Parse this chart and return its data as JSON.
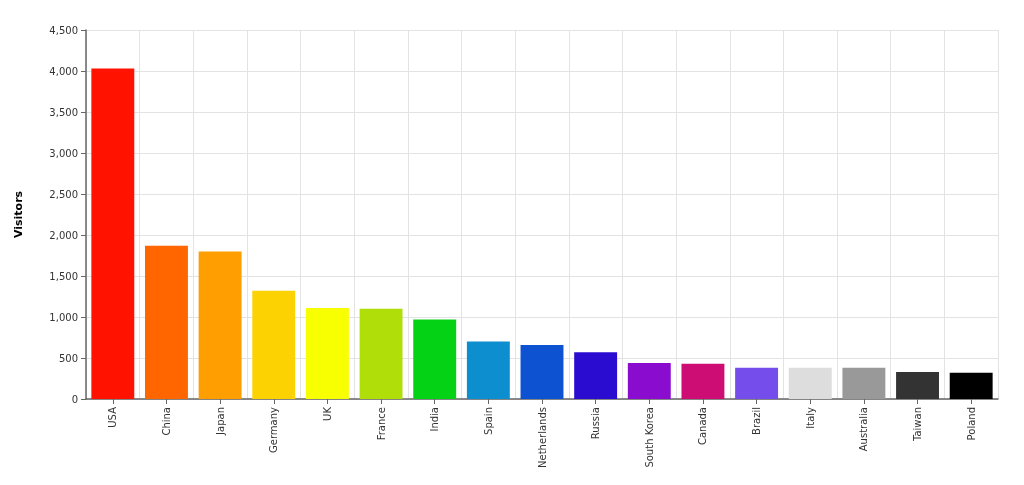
{
  "chart_data": {
    "type": "bar",
    "ylabel": "Visitors",
    "categories": [
      "USA",
      "China",
      "Japan",
      "Germany",
      "UK",
      "France",
      "India",
      "Spain",
      "Netherlands",
      "Russia",
      "South Korea",
      "Canada",
      "Brazil",
      "Italy",
      "Australia",
      "Taiwan",
      "Poland"
    ],
    "values": [
      4030,
      1870,
      1800,
      1320,
      1110,
      1100,
      970,
      700,
      660,
      570,
      440,
      430,
      380,
      380,
      380,
      330,
      320
    ],
    "colors": [
      "#ff1300",
      "#ff6600",
      "#ff9e01",
      "#fcd202",
      "#f8ff01",
      "#b0de09",
      "#04d215",
      "#0d8ecf",
      "#0d52d1",
      "#2a0cd0",
      "#8a0ccf",
      "#cd0d74",
      "#754deb",
      "#dddddd",
      "#999999",
      "#333333",
      "#000000"
    ],
    "ylim": [
      0,
      4500
    ],
    "yticks": [
      {
        "value": 0,
        "label": "0"
      },
      {
        "value": 500,
        "label": "500"
      },
      {
        "value": 1000,
        "label": "1,000"
      },
      {
        "value": 1500,
        "label": "1,500"
      },
      {
        "value": 2000,
        "label": "2,000"
      },
      {
        "value": 2500,
        "label": "2,500"
      },
      {
        "value": 3000,
        "label": "3,000"
      },
      {
        "value": 3500,
        "label": "3,500"
      },
      {
        "value": 4000,
        "label": "4,000"
      },
      {
        "value": 4500,
        "label": "4,500"
      }
    ],
    "grid": true
  }
}
